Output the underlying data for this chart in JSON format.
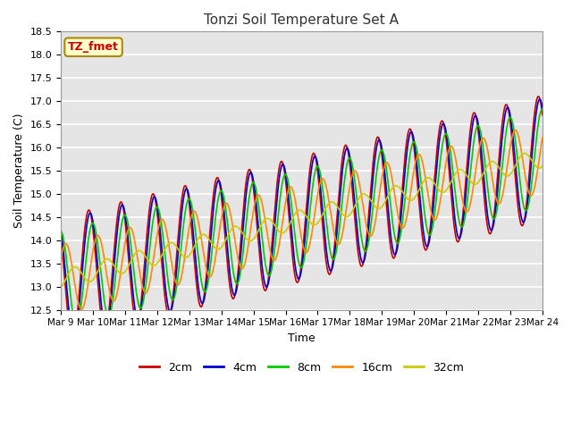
{
  "title": "Tonzi Soil Temperature Set A",
  "xlabel": "Time",
  "ylabel": "Soil Temperature (C)",
  "ylim": [
    12.5,
    18.5
  ],
  "n_days": 15,
  "x_tick_labels": [
    "Mar 9",
    "Mar 10",
    "Mar 11",
    "Mar 12",
    "Mar 13",
    "Mar 14",
    "Mar 15",
    "Mar 16",
    "Mar 17",
    "Mar 18",
    "Mar 19",
    "Mar 20",
    "Mar 21",
    "Mar 22",
    "Mar 23",
    "Mar 24"
  ],
  "series_colors": [
    "#cc0000",
    "#0000cc",
    "#00cc00",
    "#ff8800",
    "#cccc00"
  ],
  "series_labels": [
    "2cm",
    "4cm",
    "8cm",
    "16cm",
    "32cm"
  ],
  "annotation_text": "TZ_fmet",
  "annotation_bg": "#ffffcc",
  "annotation_border": "#aa8800",
  "annotation_text_color": "#cc0000",
  "bg_color": "#e5e5e5",
  "fig_bg": "#ffffff",
  "grid_color": "#ffffff",
  "base_temp": 13.15,
  "trend": 0.175,
  "amplitudes": [
    1.35,
    1.28,
    1.05,
    0.75,
    0.2
  ],
  "phase_shifts": [
    0.0,
    0.04,
    0.12,
    0.28,
    0.55
  ],
  "phase_peak": 0.62,
  "points_per_day": 96,
  "linewidth": 1.2
}
